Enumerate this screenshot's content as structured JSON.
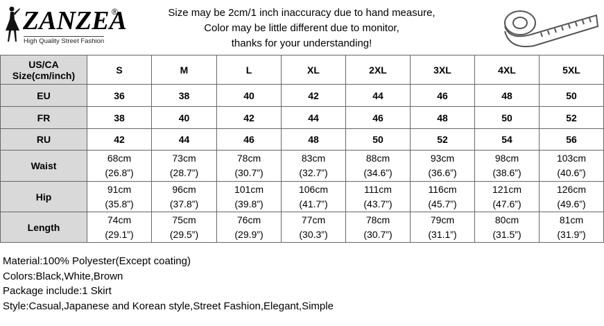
{
  "header": {
    "logo": "ZANZEA",
    "logo_mark": "®",
    "tagline": "High Quality Street Fashion",
    "notice": [
      "Size may be 2cm/1 inch inaccuracy due to hand measure,",
      "Color may be little different due to monitor,",
      "thanks for your understanding!"
    ]
  },
  "table": {
    "corner": [
      "US/CA",
      "Size(cm/inch)"
    ],
    "sizes": [
      "S",
      "M",
      "L",
      "XL",
      "2XL",
      "3XL",
      "4XL",
      "5XL"
    ],
    "rows": [
      {
        "label": "EU",
        "cells": [
          "36",
          "38",
          "40",
          "42",
          "44",
          "46",
          "48",
          "50"
        ]
      },
      {
        "label": "FR",
        "cells": [
          "38",
          "40",
          "42",
          "44",
          "46",
          "48",
          "50",
          "52"
        ]
      },
      {
        "label": "RU",
        "cells": [
          "42",
          "44",
          "46",
          "48",
          "50",
          "52",
          "54",
          "56"
        ]
      },
      {
        "label": "Waist",
        "cells": [
          [
            "68cm",
            "(26.8”)"
          ],
          [
            "73cm",
            "(28.7”)"
          ],
          [
            "78cm",
            "(30.7”)"
          ],
          [
            "83cm",
            "(32.7”)"
          ],
          [
            "88cm",
            "(34.6”)"
          ],
          [
            "93cm",
            "(36.6”)"
          ],
          [
            "98cm",
            "(38.6”)"
          ],
          [
            "103cm",
            "(40.6”)"
          ]
        ]
      },
      {
        "label": "Hip",
        "cells": [
          [
            "91cm",
            "(35.8”)"
          ],
          [
            "96cm",
            "(37.8”)"
          ],
          [
            "101cm",
            "(39.8”)"
          ],
          [
            "106cm",
            "(41.7”)"
          ],
          [
            "111cm",
            "(43.7”)"
          ],
          [
            "116cm",
            "(45.7”)"
          ],
          [
            "121cm",
            "(47.6”)"
          ],
          [
            "126cm",
            "(49.6”)"
          ]
        ]
      },
      {
        "label": "Length",
        "cells": [
          [
            "74cm",
            "(29.1”)"
          ],
          [
            "75cm",
            "(29.5”)"
          ],
          [
            "76cm",
            "(29.9”)"
          ],
          [
            "77cm",
            "(30.3”)"
          ],
          [
            "78cm",
            "(30.7”)"
          ],
          [
            "79cm",
            "(31.1”)"
          ],
          [
            "80cm",
            "(31.5”)"
          ],
          [
            "81cm",
            "(31.9”)"
          ]
        ]
      }
    ]
  },
  "details": [
    "Material:100% Polyester(Except coating)",
    "Colors:Black,White,Brown",
    "Package include:1 Skirt",
    "Style:Casual,Japanese and Korean style,Street Fashion,Elegant,Simple"
  ]
}
